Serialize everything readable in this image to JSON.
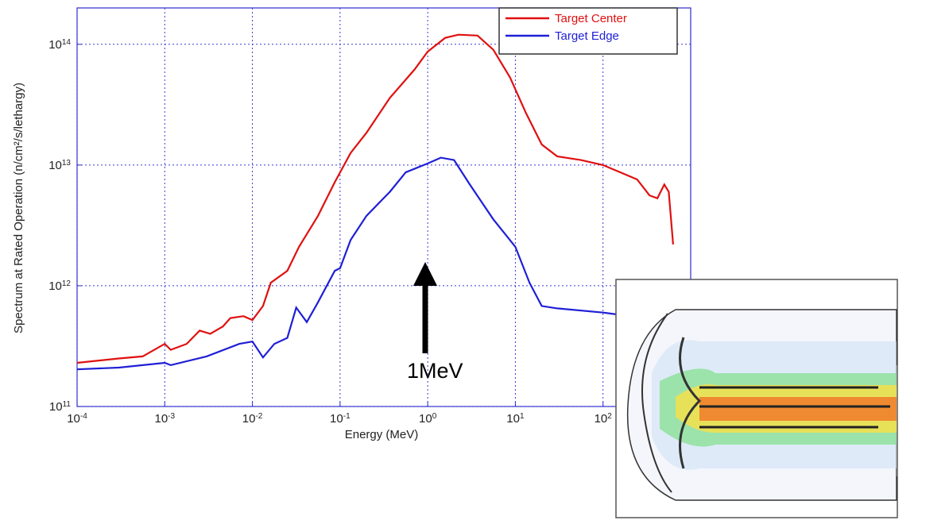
{
  "chart_data": {
    "type": "line",
    "xscale": "log",
    "yscale": "log",
    "grid": true,
    "legend": "upper right",
    "x_label": "Energy (MeV)",
    "y_label": "Spectrum at Rated Operation (n/cm²/s/lethargy)",
    "annotation": "1MeV",
    "xlim": [
      0.0001,
      1000
    ],
    "ylim": [
      100000000000.0,
      200000000000000.0
    ],
    "xticks": [
      {
        "value": 0.0001,
        "label": "10",
        "sup": "-4"
      },
      {
        "value": 0.001,
        "label": "10",
        "sup": "-3"
      },
      {
        "value": 0.01,
        "label": "10",
        "sup": "-2"
      },
      {
        "value": 0.1,
        "label": "10",
        "sup": "-1"
      },
      {
        "value": 1,
        "label": "10",
        "sup": "0"
      },
      {
        "value": 10,
        "label": "10",
        "sup": "1"
      },
      {
        "value": 100,
        "label": "10",
        "sup": "2"
      }
    ],
    "yticks": [
      {
        "value": 100000000000.0,
        "label": "10",
        "sup": "11"
      },
      {
        "value": 1000000000000.0,
        "label": "10",
        "sup": "12"
      },
      {
        "value": 10000000000000.0,
        "label": "10",
        "sup": "13"
      },
      {
        "value": 100000000000000.0,
        "label": "10",
        "sup": "14"
      }
    ],
    "series": [
      {
        "name": "Target Center",
        "color": "#e01010",
        "x": [
          0.0001,
          0.0003,
          0.00056,
          0.001,
          0.00117,
          0.00178,
          0.0025,
          0.0033,
          0.0046,
          0.0056,
          0.0079,
          0.01,
          0.0132,
          0.0162,
          0.025,
          0.034,
          0.056,
          0.087,
          0.1,
          0.132,
          0.2,
          0.37,
          0.71,
          1,
          1.58,
          2.24,
          3.7,
          5.6,
          8.7,
          13.2,
          20,
          30,
          56,
          100,
          158,
          245,
          339,
          417,
          500,
          562,
          631
        ],
        "values": [
          230000000000.0,
          250000000000.0,
          260000000000.0,
          330000000000.0,
          295000000000.0,
          330000000000.0,
          425000000000.0,
          400000000000.0,
          460000000000.0,
          540000000000.0,
          560000000000.0,
          520000000000.0,
          680000000000.0,
          1060000000000.0,
          1330000000000.0,
          2100000000000.0,
          3800000000000.0,
          7200000000000.0,
          8700000000000.0,
          12600000000000.0,
          18500000000000.0,
          36000000000000.0,
          62000000000000.0,
          87000000000000.0,
          113000000000000.0,
          120000000000000.0,
          118000000000000.0,
          90000000000000.0,
          53000000000000.0,
          27000000000000.0,
          14800000000000.0,
          11800000000000.0,
          11000000000000.0,
          10000000000000.0,
          8700000000000.0,
          7600000000000.0,
          5600000000000.0,
          5300000000000.0,
          6900000000000.0,
          6000000000000.0,
          2200000000000.0
        ]
      },
      {
        "name": "Target Edge",
        "color": "#1f1fd6",
        "x": [
          0.0001,
          0.0003,
          0.001,
          0.00117,
          0.003,
          0.0071,
          0.01,
          0.0132,
          0.0178,
          0.025,
          0.0316,
          0.0417,
          0.056,
          0.087,
          0.1,
          0.132,
          0.2,
          0.37,
          0.56,
          1,
          1.41,
          2,
          3.02,
          5.6,
          10,
          14.5,
          20,
          30,
          100,
          141
        ],
        "values": [
          203000000000.0,
          210000000000.0,
          230000000000.0,
          220000000000.0,
          260000000000.0,
          330000000000.0,
          345000000000.0,
          255000000000.0,
          330000000000.0,
          370000000000.0,
          660000000000.0,
          500000000000.0,
          730000000000.0,
          1330000000000.0,
          1400000000000.0,
          2400000000000.0,
          3800000000000.0,
          6000000000000.0,
          8700000000000.0,
          10300000000000.0,
          11500000000000.0,
          11000000000000.0,
          6900000000000.0,
          3550000000000.0,
          2100000000000.0,
          1060000000000.0,
          680000000000.0,
          650000000000.0,
          600000000000.0,
          580000000000.0
        ]
      }
    ]
  }
}
